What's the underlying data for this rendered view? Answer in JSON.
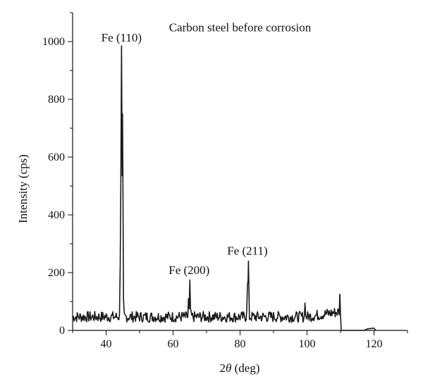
{
  "chart_data": {
    "type": "line",
    "title": "",
    "annotations": [
      {
        "text": "Carbon steel before corrosion",
        "x": 80,
        "y": 1035
      },
      {
        "text": "Fe (110)",
        "x": 44.6,
        "y": 1000
      },
      {
        "text": "Fe (200)",
        "x": 64.8,
        "y": 195
      },
      {
        "text": "Fe (211)",
        "x": 82.2,
        "y": 262
      }
    ],
    "xlabel_prefix": "2",
    "xlabel_symbol": "θ",
    "xlabel_suffix": " (deg)",
    "ylabel": "Intensity (cps)",
    "xlim": [
      30,
      130
    ],
    "ylim": [
      0,
      1100
    ],
    "xticks": [
      40,
      60,
      80,
      100,
      120
    ],
    "yticks": [
      0,
      200,
      400,
      600,
      800,
      1000
    ],
    "xtick_labels": [
      "40",
      "60",
      "80",
      "100",
      "120"
    ],
    "ytick_labels": [
      "0",
      "200",
      "400",
      "600",
      "800",
      "1000"
    ],
    "line_color": "#1a1a1a",
    "series": [
      {
        "peaks": [
          {
            "x": 44.4,
            "y": 520
          },
          {
            "x": 44.6,
            "y": 985
          },
          {
            "x": 44.9,
            "y": 750
          },
          {
            "x": 64.6,
            "y": 110
          },
          {
            "x": 65.0,
            "y": 175
          },
          {
            "x": 82.2,
            "y": 160
          },
          {
            "x": 82.5,
            "y": 240
          },
          {
            "x": 99.4,
            "y": 95
          },
          {
            "x": 109.8,
            "y": 125
          }
        ],
        "baseline_start": 30,
        "baseline_end": 110.2,
        "tail": [
          {
            "x": 110.2,
            "y": 0
          },
          {
            "x": 117.0,
            "y": 0
          },
          {
            "x": 118.0,
            "y": 5
          },
          {
            "x": 120.0,
            "y": 8
          },
          {
            "x": 120.5,
            "y": 0
          }
        ]
      }
    ]
  }
}
